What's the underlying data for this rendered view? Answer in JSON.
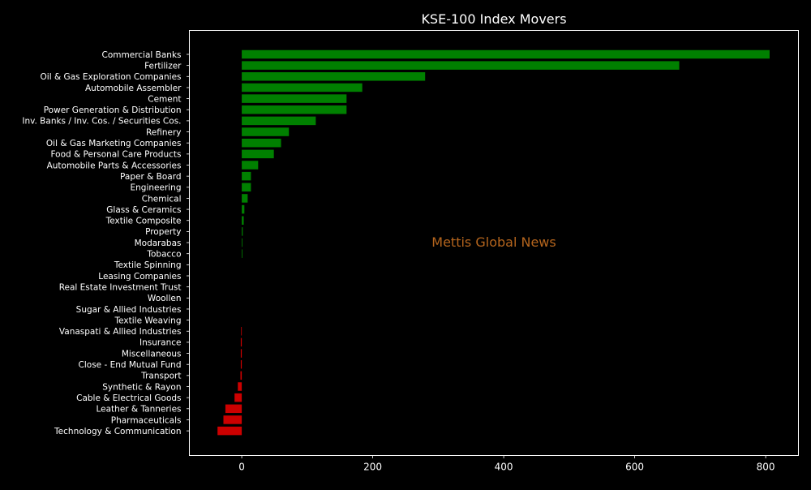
{
  "chart_data": {
    "type": "bar",
    "orientation": "horizontal",
    "title": "KSE-100 Index Movers",
    "xlabel": "",
    "ylabel": "",
    "watermark": "Mettis Global News",
    "xlim": [
      -80,
      850
    ],
    "xticks": [
      0,
      200,
      400,
      600,
      800
    ],
    "grid": false,
    "legend": "none",
    "colors": {
      "background": "#000000",
      "text": "#ffffff",
      "positive": "#008000",
      "negative": "#cc0000",
      "watermark": "#b5651d",
      "axes": "#ffffff"
    },
    "categories": [
      "Commercial Banks",
      "Fertilizer",
      "Oil & Gas Exploration Companies",
      "Automobile Assembler",
      "Cement",
      "Power Generation & Distribution",
      "Inv. Banks / Inv. Cos. / Securities Cos.",
      "Refinery",
      "Oil & Gas Marketing Companies",
      "Food & Personal Care Products",
      "Automobile Parts & Accessories",
      "Paper & Board",
      "Engineering",
      "Chemical",
      "Glass & Ceramics",
      "Textile Composite",
      "Property",
      "Modarabas",
      "Tobacco",
      "Textile Spinning",
      "Leasing Companies",
      "Real Estate Investment Trust",
      "Woollen",
      "Sugar & Allied Industries",
      "Textile Weaving",
      "Vanaspati & Allied Industries",
      "Insurance",
      "Miscellaneous",
      "Close - End Mutual Fund",
      "Transport",
      "Synthetic & Rayon",
      "Cable & Electrical Goods",
      "Leather & Tanneries",
      "Pharmaceuticals",
      "Technology & Communication"
    ],
    "values": [
      806,
      668,
      280,
      184,
      160,
      160,
      113,
      72,
      60,
      49,
      25,
      14,
      14,
      9,
      4,
      3,
      1.5,
      1,
      1,
      0,
      0,
      0,
      0,
      0,
      0,
      -1,
      -1.5,
      -1.5,
      -1.5,
      -2,
      -6,
      -11,
      -25,
      -28,
      -37
    ]
  }
}
